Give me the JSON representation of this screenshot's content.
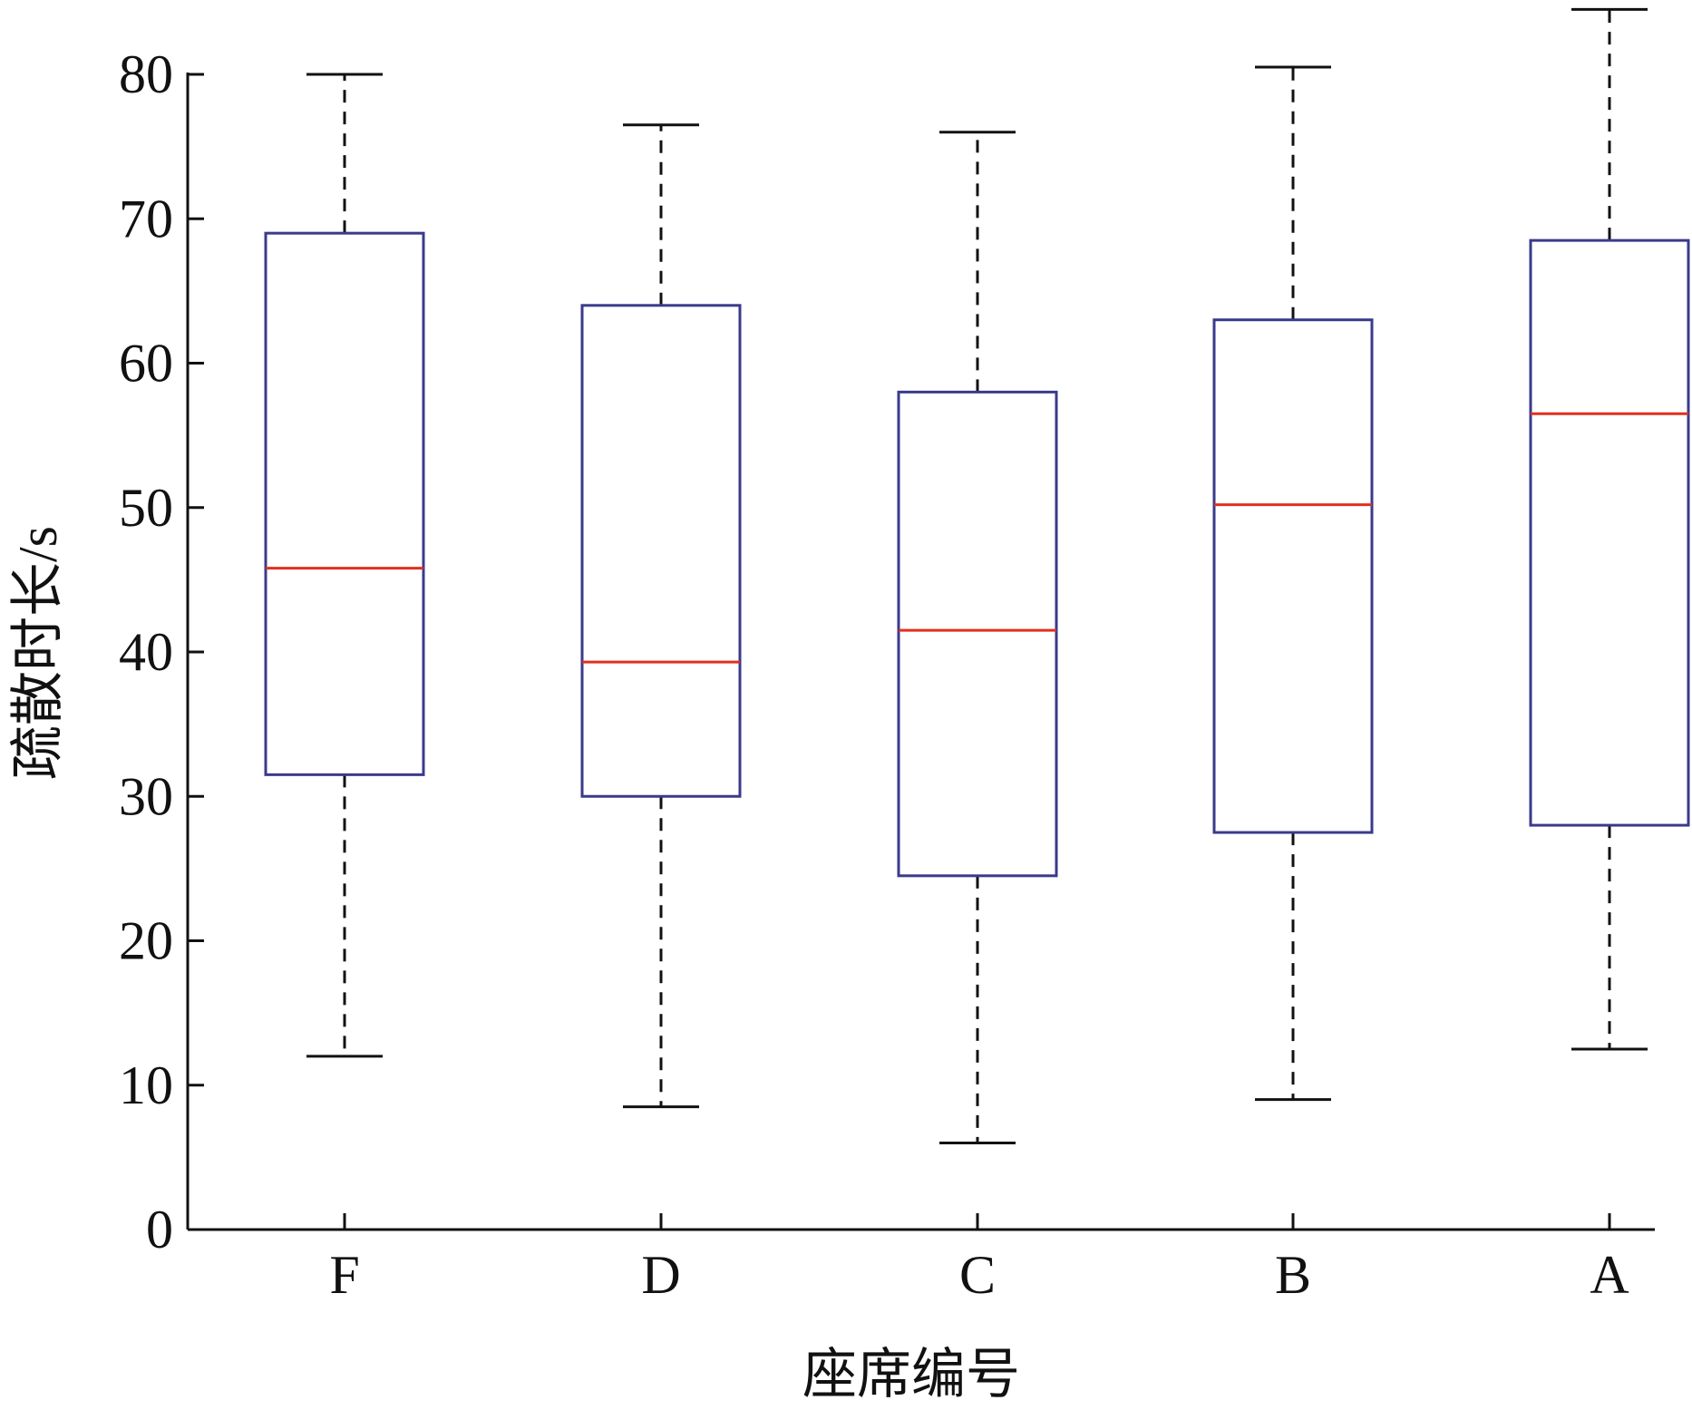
{
  "chart_data": {
    "type": "boxplot",
    "xlabel": "座席编号",
    "ylabel": "疏散时长/s",
    "ylim": [
      0,
      80
    ],
    "yticks": [
      0,
      10,
      20,
      30,
      40,
      50,
      60,
      70,
      80
    ],
    "grid": false,
    "legend": "none",
    "categories": [
      "F",
      "D",
      "C",
      "B",
      "A"
    ],
    "boxes": [
      {
        "category": "F",
        "whisker_low": 12.0,
        "q1": 31.5,
        "median": 45.8,
        "q3": 69.0,
        "whisker_high": 80.0
      },
      {
        "category": "D",
        "whisker_low": 8.5,
        "q1": 30.0,
        "median": 39.3,
        "q3": 64.0,
        "whisker_high": 76.5
      },
      {
        "category": "C",
        "whisker_low": 6.0,
        "q1": 24.5,
        "median": 41.5,
        "q3": 58.0,
        "whisker_high": 76.0
      },
      {
        "category": "B",
        "whisker_low": 9.0,
        "q1": 27.5,
        "median": 50.2,
        "q3": 63.0,
        "whisker_high": 80.5
      },
      {
        "category": "A",
        "whisker_low": 12.5,
        "q1": 28.0,
        "median": 56.5,
        "q3": 68.5,
        "whisker_high": 84.5
      }
    ],
    "colors": {
      "box": "#3a3a8c",
      "median": "#e0301e",
      "whisker": "#111111",
      "axis": "#111111"
    }
  }
}
